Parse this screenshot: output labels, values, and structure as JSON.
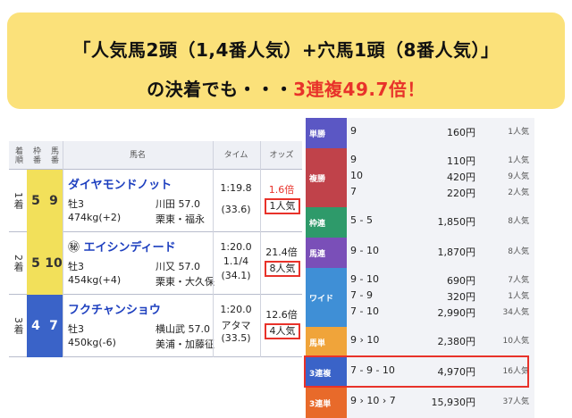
{
  "banner": {
    "line1": "「人気馬2頭（1,4番人気）+穴馬1頭（8番人気）」",
    "line2_prefix": "の決着でも・・・",
    "line2_highlight": "3連複49.7倍！"
  },
  "result_table": {
    "headers": {
      "rank": "着順",
      "waku": "枠番",
      "umaban": "馬番",
      "name": "馬名",
      "time": "タイム",
      "odds": "オッズ"
    },
    "rows": [
      {
        "rank": "1着",
        "waku": "5",
        "umaban": "9",
        "waku_color": "#f2e05a",
        "waku_text": "#333333",
        "name": "ダイヤモンドノット",
        "marker": "",
        "sex_age": "牡3",
        "jockey": "川田 57.0",
        "weight": "474kg(+2)",
        "trainer": "栗東・福永",
        "time": "1:19.8",
        "time_diff": "",
        "last3f": "(33.6)",
        "odds": "1.6倍",
        "odds_color": "#e8322a",
        "popularity": "1人気"
      },
      {
        "rank": "2着",
        "waku": "5",
        "umaban": "10",
        "waku_color": "#f2e05a",
        "waku_text": "#333333",
        "name": "エイシンディード",
        "marker": "㊙",
        "sex_age": "牡3",
        "jockey": "川又 57.0",
        "weight": "454kg(+4)",
        "trainer": "栗東・大久保",
        "time": "1:20.0",
        "time_diff": "1.1/4",
        "last3f": "(34.1)",
        "odds": "21.4倍",
        "odds_color": "#222222",
        "popularity": "8人気"
      },
      {
        "rank": "3着",
        "waku": "4",
        "umaban": "7",
        "waku_color": "#3a63c8",
        "waku_text": "#ffffff",
        "name": "フクチャンショウ",
        "marker": "",
        "sex_age": "牡3",
        "jockey": "横山武 57.0",
        "weight": "450kg(-6)",
        "trainer": "美浦・加藤征",
        "time": "1:20.0",
        "time_diff": "アタマ",
        "last3f": "(33.5)",
        "odds": "12.6倍",
        "odds_color": "#222222",
        "popularity": "4人気"
      }
    ]
  },
  "payout_table": {
    "rows": [
      {
        "type": "単勝",
        "color": "#5b57c4",
        "lines": [
          {
            "combo": "9",
            "amount": "160円",
            "pop": "1人気"
          }
        ]
      },
      {
        "type": "複勝",
        "color": "#c0424a",
        "lines": [
          {
            "combo": "9",
            "amount": "110円",
            "pop": "1人気"
          },
          {
            "combo": "10",
            "amount": "420円",
            "pop": "9人気"
          },
          {
            "combo": "7",
            "amount": "220円",
            "pop": "2人気"
          }
        ]
      },
      {
        "type": "枠連",
        "color": "#2e9a6a",
        "lines": [
          {
            "combo": "5 - 5",
            "amount": "1,850円",
            "pop": "8人気"
          }
        ]
      },
      {
        "type": "馬連",
        "color": "#7a4fb8",
        "lines": [
          {
            "combo": "9 - 10",
            "amount": "1,870円",
            "pop": "8人気"
          }
        ]
      },
      {
        "type": "ワイド",
        "color": "#3f8fd6",
        "lines": [
          {
            "combo": "9 - 10",
            "amount": "690円",
            "pop": "7人気"
          },
          {
            "combo": "7 - 9",
            "amount": "320円",
            "pop": "1人気"
          },
          {
            "combo": "7 - 10",
            "amount": "2,990円",
            "pop": "34人気"
          }
        ]
      },
      {
        "type": "馬単",
        "color": "#f0a43a",
        "lines": [
          {
            "combo": "9 › 10",
            "amount": "2,380円",
            "pop": "10人気"
          }
        ]
      },
      {
        "type": "3連複",
        "color": "#3a63c8",
        "lines": [
          {
            "combo": "7 - 9 - 10",
            "amount": "4,970円",
            "pop": "16人気"
          }
        ]
      },
      {
        "type": "3連単",
        "color": "#e86a2a",
        "lines": [
          {
            "combo": "9 › 10 › 7",
            "amount": "15,930円",
            "pop": "37人気"
          }
        ]
      }
    ]
  }
}
